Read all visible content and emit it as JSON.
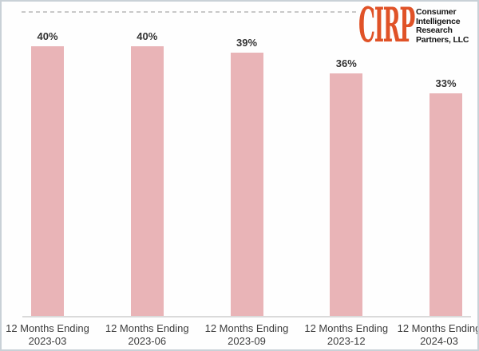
{
  "logo": {
    "brand": "CIRP",
    "brand_color": "#e05227",
    "lines": [
      "Consumer",
      "Intelligence",
      "Research",
      "Partners, LLC"
    ]
  },
  "chart_data": {
    "type": "bar",
    "title": "",
    "xlabel": "",
    "ylabel": "",
    "unit": "%",
    "categories": [
      {
        "line1": "12 Months Ending",
        "line2": "2023-03"
      },
      {
        "line1": "12 Months Ending",
        "line2": "2023-06"
      },
      {
        "line1": "12 Months Ending",
        "line2": "2023-09"
      },
      {
        "line1": "12 Months Ending",
        "line2": "2023-12"
      },
      {
        "line1": "12 Months Ending",
        "line2": "2024-03"
      }
    ],
    "values": [
      40,
      40,
      39,
      36,
      33
    ],
    "value_labels": [
      "40%",
      "40%",
      "39%",
      "36%",
      "33%"
    ],
    "ylim": [
      0,
      45
    ],
    "y_axis_visible": false,
    "data_labels": true,
    "grid": "single dashed line at top of plot area",
    "legend": "none",
    "bar_color": "#e9b4b7",
    "axis_line_color": "#dadada",
    "gridline_color": "#c9c9c9",
    "label_color": "#333333",
    "tick_label_color": "#3d3d3d",
    "border_color": "#c9d1d7"
  }
}
